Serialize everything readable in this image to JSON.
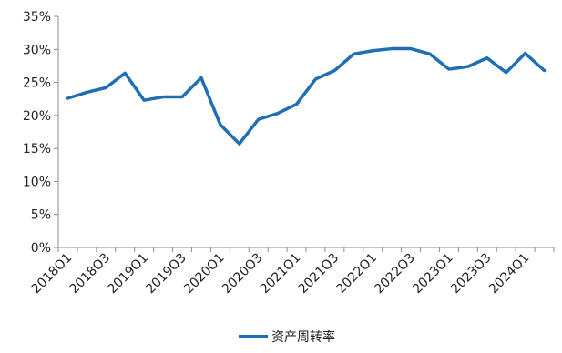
{
  "chart_data": {
    "type": "line",
    "x": [
      "2018Q1",
      "2018Q2",
      "2018Q3",
      "2018Q4",
      "2019Q1",
      "2019Q2",
      "2019Q3",
      "2019Q4",
      "2020Q1",
      "2020Q2",
      "2020Q3",
      "2020Q4",
      "2021Q1",
      "2021Q2",
      "2021Q3",
      "2021Q4",
      "2022Q1",
      "2022Q2",
      "2022Q3",
      "2022Q4",
      "2023Q1",
      "2023Q2",
      "2023Q3",
      "2023Q4",
      "2024Q1",
      "2024Q2"
    ],
    "x_tick_labels": [
      "2018Q1",
      "2018Q3",
      "2019Q1",
      "2019Q3",
      "2020Q1",
      "2020Q3",
      "2021Q1",
      "2021Q3",
      "2022Q1",
      "2022Q3",
      "2023Q1",
      "2023Q3",
      "2024Q1"
    ],
    "series": [
      {
        "name": "资产周转率",
        "color": "#1f6fb5",
        "values": [
          22.6,
          23.5,
          24.2,
          26.4,
          22.3,
          22.8,
          22.8,
          25.7,
          18.6,
          15.7,
          19.4,
          20.3,
          21.7,
          25.5,
          26.8,
          29.3,
          29.8,
          30.1,
          30.1,
          29.3,
          27.0,
          27.4,
          28.7,
          26.5,
          29.4,
          26.8
        ]
      }
    ],
    "y_tick_labels": [
      "0%",
      "5%",
      "10%",
      "15%",
      "20%",
      "25%",
      "30%",
      "35%"
    ],
    "ylim": [
      0,
      35
    ],
    "y_unit": "%",
    "grid": false,
    "legend_position": "bottom-center"
  },
  "legend": {
    "label": "资产周转率"
  }
}
